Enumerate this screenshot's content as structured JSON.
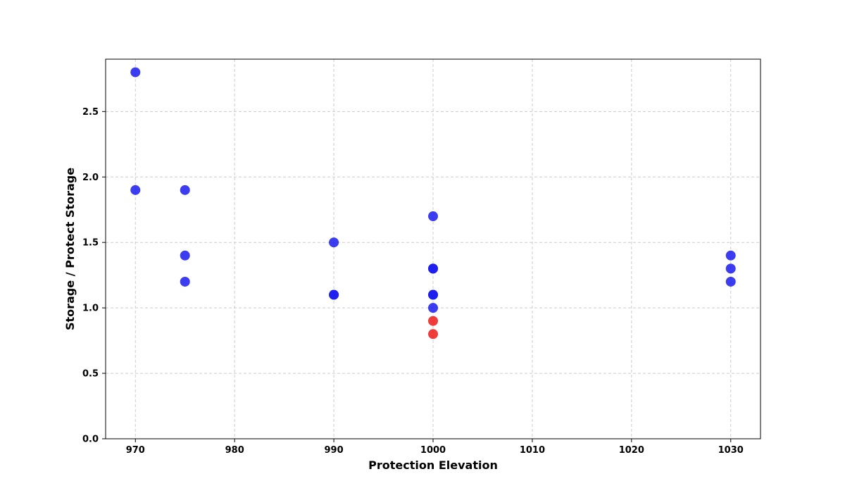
{
  "chart_data": {
    "type": "scatter",
    "title": "",
    "xlabel": "Protection Elevation",
    "ylabel": "Storage / Protect Storage",
    "xlim": [
      967,
      1033
    ],
    "ylim": [
      0,
      2.9
    ],
    "x_ticks": [
      970,
      980,
      990,
      1000,
      1010,
      1020,
      1030
    ],
    "x_tick_labels": [
      "970",
      "980",
      "990",
      "1000",
      "1010",
      "1020",
      "1030"
    ],
    "y_ticks": [
      0.0,
      0.5,
      1.0,
      1.5,
      2.0,
      2.5
    ],
    "y_tick_labels": [
      "0.0",
      "0.5",
      "1.0",
      "1.5",
      "2.0",
      "2.5"
    ],
    "grid": true,
    "legend": "none",
    "colors": {
      "above": "#1a1aee",
      "below": "#ee1a1a"
    },
    "points": [
      {
        "x": 970,
        "y": 2.8,
        "group": "above"
      },
      {
        "x": 970,
        "y": 1.9,
        "group": "above"
      },
      {
        "x": 975,
        "y": 1.9,
        "group": "above"
      },
      {
        "x": 975,
        "y": 1.4,
        "group": "above"
      },
      {
        "x": 975,
        "y": 1.2,
        "group": "above"
      },
      {
        "x": 990,
        "y": 1.5,
        "group": "above"
      },
      {
        "x": 990,
        "y": 1.1,
        "group": "above"
      },
      {
        "x": 990,
        "y": 1.1,
        "group": "above"
      },
      {
        "x": 1000,
        "y": 1.7,
        "group": "above"
      },
      {
        "x": 1000,
        "y": 1.3,
        "group": "above"
      },
      {
        "x": 1000,
        "y": 1.3,
        "group": "above"
      },
      {
        "x": 1000,
        "y": 1.1,
        "group": "above"
      },
      {
        "x": 1000,
        "y": 1.1,
        "group": "above"
      },
      {
        "x": 1000,
        "y": 1.0,
        "group": "above"
      },
      {
        "x": 1000,
        "y": 0.9,
        "group": "below"
      },
      {
        "x": 1000,
        "y": 0.8,
        "group": "below"
      },
      {
        "x": 1030,
        "y": 1.4,
        "group": "above"
      },
      {
        "x": 1030,
        "y": 1.3,
        "group": "above"
      },
      {
        "x": 1030,
        "y": 1.2,
        "group": "above"
      }
    ]
  }
}
